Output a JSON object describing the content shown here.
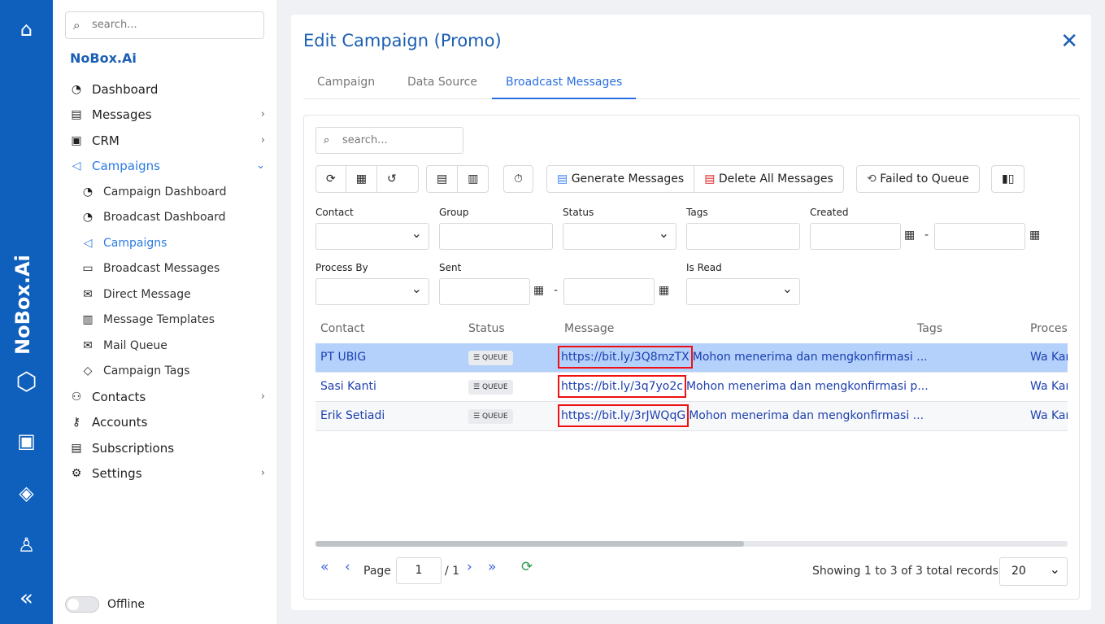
{
  "rail": {
    "brand": "NoBox.Ai",
    "icons": [
      "home-icon",
      "translate-icon",
      "paint-bucket-icon",
      "user-icon",
      "collapse-icon"
    ]
  },
  "sidebar": {
    "search_placeholder": "search...",
    "org": "NoBox.Ai",
    "items": [
      {
        "label": "Dashboard",
        "icon": "gauge-icon"
      },
      {
        "label": "Messages",
        "icon": "message-icon",
        "chevron": ">"
      },
      {
        "label": "CRM",
        "icon": "crm-icon",
        "chevron": ">"
      },
      {
        "label": "Campaigns",
        "icon": "megaphone-icon",
        "chevron": "v",
        "active": true
      },
      {
        "label": "Campaign Dashboard",
        "icon": "gauge-icon",
        "sub": true
      },
      {
        "label": "Broadcast Dashboard",
        "icon": "gauge-icon",
        "sub": true
      },
      {
        "label": "Campaigns",
        "icon": "megaphone-icon",
        "sub": true,
        "active": true
      },
      {
        "label": "Broadcast Messages",
        "icon": "chat-icon",
        "sub": true
      },
      {
        "label": "Direct Message",
        "icon": "mail-icon",
        "sub": true
      },
      {
        "label": "Message Templates",
        "icon": "document-icon",
        "sub": true
      },
      {
        "label": "Mail Queue",
        "icon": "mail-icon",
        "sub": true
      },
      {
        "label": "Campaign Tags",
        "icon": "tag-icon",
        "sub": true
      },
      {
        "label": "Contacts",
        "icon": "contacts-icon",
        "chevron": ">"
      },
      {
        "label": "Accounts",
        "icon": "key-icon"
      },
      {
        "label": "Subscriptions",
        "icon": "receipt-icon"
      },
      {
        "label": "Settings",
        "icon": "gear-icon",
        "chevron": ">"
      }
    ],
    "offline_label": "Offline"
  },
  "dialog": {
    "title": "Edit Campaign (Promo)",
    "tabs": [
      "Campaign",
      "Data Source",
      "Broadcast Messages"
    ],
    "active_tab": 2
  },
  "grid": {
    "search_placeholder": "search...",
    "toolbar": {
      "generate": "Generate Messages",
      "delete_all": "Delete All Messages",
      "failed_to_queue": "Failed to Queue"
    },
    "filters": {
      "contact": "Contact",
      "group": "Group",
      "status": "Status",
      "tags": "Tags",
      "created": "Created",
      "process_by": "Process By",
      "sent": "Sent",
      "is_read": "Is Read"
    },
    "columns": [
      "Contact",
      "Status",
      "Message",
      "Tags",
      "Proces"
    ],
    "rows": [
      {
        "contact": "PT UBIG",
        "status": "QUEUE",
        "url": "https://bit.ly/3Q8mzTX",
        "message": "Mohon menerima dan mengkonfirmasi ...",
        "tags": "",
        "process": "Wa Kar",
        "selected": true
      },
      {
        "contact": "Sasi Kanti",
        "status": "QUEUE",
        "url": "https://bit.ly/3q7yo2c",
        "message": "Mohon menerima dan mengkonfirmasi p...",
        "tags": "",
        "process": "Wa Kar"
      },
      {
        "contact": "Erik Setiadi",
        "status": "QUEUE",
        "url": "https://bit.ly/3rJWQqG",
        "message": "Mohon menerima dan mengkonfirmasi ...",
        "tags": "",
        "process": "Wa Kar"
      }
    ],
    "pager": {
      "page_label": "Page",
      "page": "1",
      "of": "/ 1",
      "summary": "Showing 1 to 3 of 3 total records",
      "page_size": "20"
    }
  },
  "colors": {
    "rail": "#0f5fbd",
    "accent": "#2a6fe0",
    "selected_row": "#b3d1fb",
    "highlight_box": "#e11111"
  }
}
